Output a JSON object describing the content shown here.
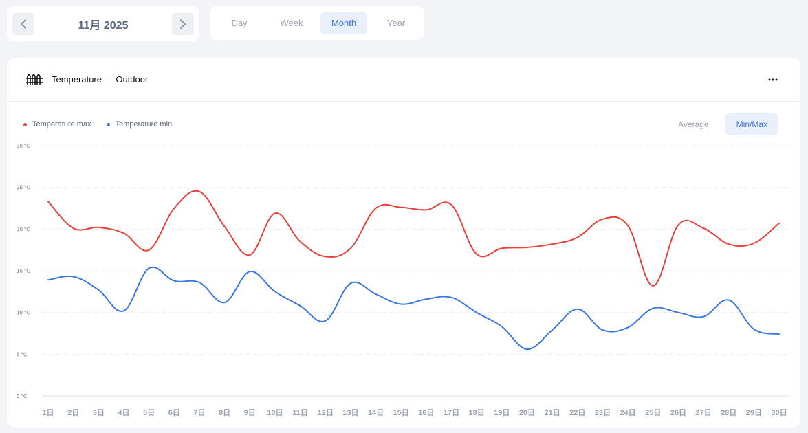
{
  "date_nav": {
    "label": "11月 2025"
  },
  "range_tabs": [
    {
      "label": "Day",
      "active": false
    },
    {
      "label": "Week",
      "active": false
    },
    {
      "label": "Month",
      "active": true
    },
    {
      "label": "Year",
      "active": false
    }
  ],
  "card": {
    "title": "Temperature",
    "separator": "-",
    "subtitle": "Outdoor",
    "icon": "fence-icon",
    "more_icon": "more-horizontal-icon"
  },
  "mode_tabs": [
    {
      "label": "Average",
      "active": false
    },
    {
      "label": "Min/Max",
      "active": true
    }
  ],
  "colors": {
    "max": "#e8413c",
    "min": "#3b76e1",
    "accent": "#3e74e0"
  },
  "chart_data": {
    "type": "line",
    "categories": [
      "1日",
      "2日",
      "3日",
      "4日",
      "5日",
      "6日",
      "7日",
      "8日",
      "9日",
      "10日",
      "11日",
      "12日",
      "13日",
      "14日",
      "15日",
      "16日",
      "17日",
      "18日",
      "19日",
      "20日",
      "21日",
      "22日",
      "23日",
      "24日",
      "25日",
      "26日",
      "27日",
      "28日",
      "29日",
      "30日"
    ],
    "y_ticks": [
      "0 °C",
      "5 °C",
      "10 °C",
      "15 °C",
      "20 °C",
      "25 °C",
      "30 °C"
    ],
    "ylim": [
      0,
      30
    ],
    "grid": true,
    "legend_position": "top-left",
    "series": [
      {
        "name": "Temperature max",
        "color": "#e8413c",
        "values": [
          23.3,
          20.1,
          20.2,
          19.5,
          17.5,
          22.5,
          24.5,
          20.3,
          16.9,
          21.9,
          18.5,
          16.7,
          17.7,
          22.5,
          22.6,
          22.3,
          22.9,
          17.0,
          17.7,
          17.8,
          18.2,
          19.0,
          21.2,
          20.4,
          13.2,
          20.5,
          20.1,
          18.2,
          18.3,
          20.7
        ]
      },
      {
        "name": "Temperature min",
        "color": "#3b76e1",
        "values": [
          13.9,
          14.3,
          12.7,
          10.2,
          15.3,
          13.8,
          13.6,
          11.2,
          14.9,
          12.5,
          10.8,
          9.0,
          13.5,
          12.2,
          11.0,
          11.6,
          11.8,
          10.0,
          8.3,
          5.6,
          7.9,
          10.4,
          7.9,
          8.2,
          10.5,
          10.0,
          9.5,
          11.5,
          8.0,
          7.4
        ]
      }
    ]
  }
}
